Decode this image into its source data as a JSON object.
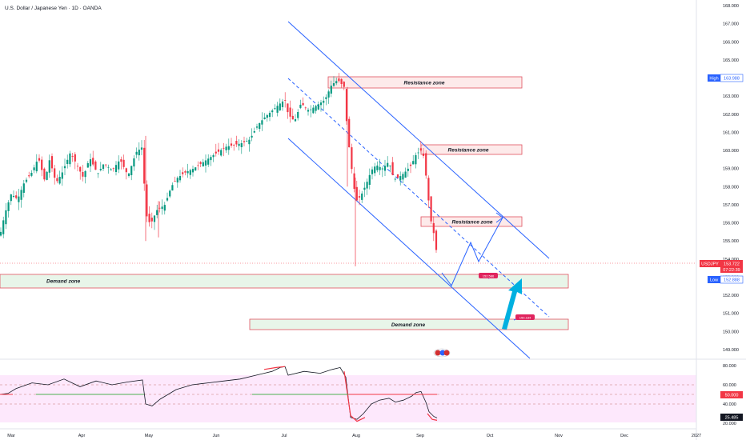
{
  "header": {
    "title": "U.S. Dollar / Japanese Yen · 1D · OANDA"
  },
  "chart_data": [
    {
      "type": "candlestick",
      "symbol": "USDJPY",
      "interval": "1D",
      "source": "OANDA",
      "ylim": [
        148.5,
        168.0
      ],
      "y_ticks": [
        "168.000",
        "167.000",
        "166.000",
        "165.000",
        "164.000",
        "163.000",
        "162.000",
        "161.000",
        "160.000",
        "159.000",
        "158.000",
        "157.000",
        "156.000",
        "155.000",
        "154.000",
        "153.000",
        "152.000",
        "151.000",
        "150.000",
        "149.000"
      ],
      "x_ticks": [
        "Mar",
        "Apr",
        "May",
        "Jun",
        "Jul",
        "Aug",
        "Sep",
        "Oct",
        "Nov",
        "Dec",
        "2027"
      ],
      "colors": {
        "up": "#089981",
        "down": "#f23645",
        "channel": "#2962ff",
        "zone_border": "#e05260",
        "demand_fill": "#e8f5e9",
        "resist_fill": "#fdeaea",
        "arrow": "#00b0e0"
      },
      "price_labels": {
        "high": {
          "tag": "High",
          "value": "163.988"
        },
        "last": {
          "symbol": "USDJPY",
          "value": "153.722",
          "countdown": "07:22:39"
        },
        "low": {
          "tag": "Low",
          "value": "152.888"
        }
      },
      "zones": [
        {
          "kind": "resistance",
          "label": "Resistance zone",
          "from": 163.5,
          "to": 164.1
        },
        {
          "kind": "resistance",
          "label": "Resistance zone",
          "from": 159.8,
          "to": 160.3
        },
        {
          "kind": "resistance",
          "label": "Resistance zone",
          "from": 155.9,
          "to": 156.4
        },
        {
          "kind": "demand",
          "label": "Demand zone",
          "from": 152.3,
          "to": 153.1
        },
        {
          "kind": "demand",
          "label": "Demand zone",
          "from": 150.2,
          "to": 150.7
        }
      ],
      "targets": [
        {
          "label": "152.586",
          "value": 152.586
        },
        {
          "label": "150.184",
          "value": 150.184
        }
      ]
    },
    {
      "type": "line",
      "indicator": "RSI",
      "ylim": [
        20,
        80
      ],
      "y_ticks": [
        "80.000",
        "60.000",
        "40.000",
        "20.000"
      ],
      "labels": {
        "mid": "50.000",
        "last": "25.485"
      }
    }
  ]
}
